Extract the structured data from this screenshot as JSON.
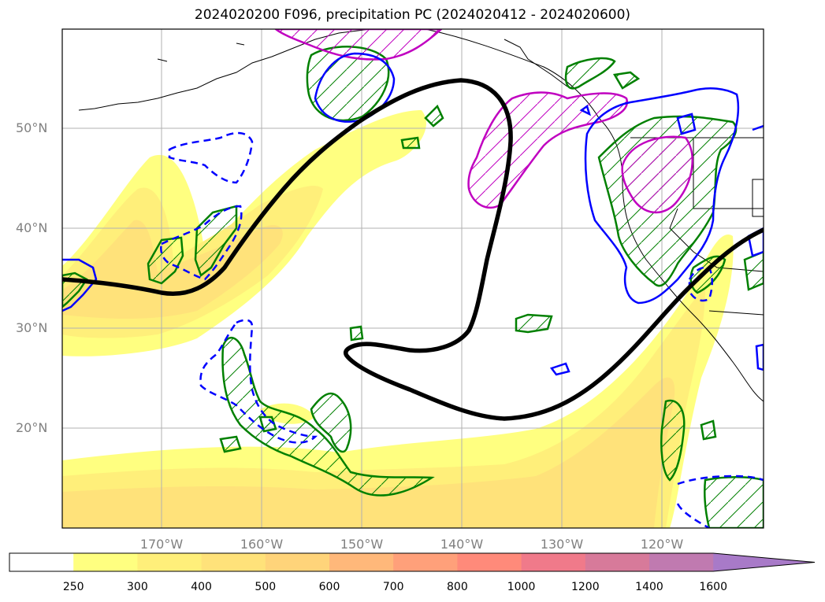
{
  "title": "2024020200 F096, precipitation PC (2024020412 - 2024020600)",
  "latitude_labels": [
    "50°N",
    "40°N",
    "30°N",
    "20°N"
  ],
  "longitude_labels": [
    "170°W",
    "160°W",
    "150°W",
    "140°W",
    "130°W",
    "120°W"
  ],
  "colorbar": {
    "tick_labels": [
      "250",
      "300",
      "400",
      "500",
      "600",
      "700",
      "800",
      "1000",
      "1200",
      "1400",
      "1600"
    ],
    "colors": [
      "#ffffff",
      "#ffff80",
      "#ffef7a",
      "#ffe27a",
      "#ffd47a",
      "#ffb87a",
      "#ffa07a",
      "#ff8a7a",
      "#f07a8a",
      "#d77a9a",
      "#c07ab0",
      "#a87ac8"
    ],
    "extend": "max"
  },
  "colors": {
    "jet_line": "#000000",
    "green_contour": "#008000",
    "blue_contour": "#0000ff",
    "magenta_contour": "#c000c0",
    "coastline": "#000000",
    "gridline": "#b0b0b0"
  }
}
